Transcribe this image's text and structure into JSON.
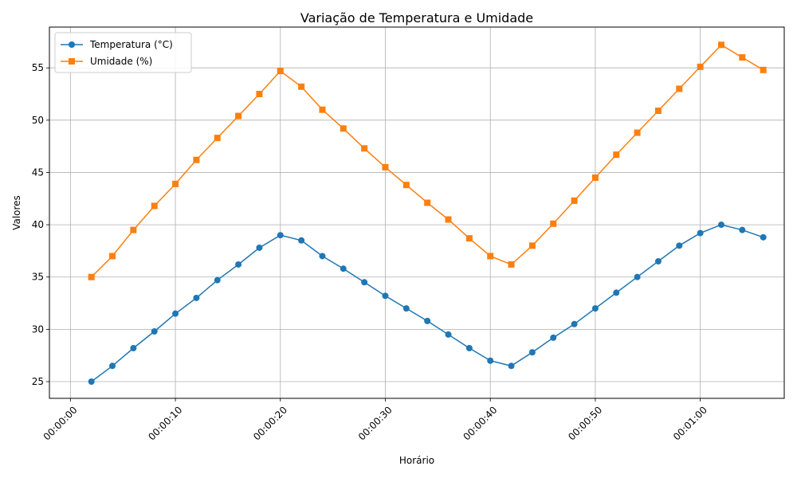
{
  "chart_data": {
    "type": "line",
    "title": "Variação de Temperatura e Umidade",
    "xlabel": "Horário",
    "ylabel": "Valores",
    "x_unit": "seconds",
    "xlim": [
      -2,
      68
    ],
    "ylim": [
      23.4,
      58.9
    ],
    "x_ticks": [
      0,
      10,
      20,
      30,
      40,
      50,
      60
    ],
    "x_tick_labels": [
      "00:00:00",
      "00:00:10",
      "00:00:20",
      "00:00:30",
      "00:00:40",
      "00:00:50",
      "00:01:00"
    ],
    "y_ticks": [
      25,
      30,
      35,
      40,
      45,
      50,
      55
    ],
    "y_tick_labels": [
      "25",
      "30",
      "35",
      "40",
      "45",
      "50",
      "55"
    ],
    "grid": true,
    "legend_position": "top-left",
    "x": [
      2,
      4,
      6,
      8,
      10,
      12,
      14,
      16,
      18,
      20,
      22,
      24,
      26,
      28,
      30,
      32,
      34,
      36,
      38,
      40,
      42,
      44,
      46,
      48,
      50,
      52,
      54,
      56,
      58,
      60,
      62,
      64,
      66
    ],
    "series": [
      {
        "name": "Temperatura (°C)",
        "color": "#1f77b4",
        "marker": "circle",
        "values": [
          25.0,
          26.5,
          28.2,
          29.8,
          31.5,
          33.0,
          34.7,
          36.2,
          37.8,
          39.0,
          38.5,
          37.0,
          35.8,
          34.5,
          33.2,
          32.0,
          30.8,
          29.5,
          28.2,
          27.0,
          26.5,
          27.8,
          29.2,
          30.5,
          32.0,
          33.5,
          35.0,
          36.5,
          38.0,
          39.2,
          40.0,
          39.5,
          38.8
        ]
      },
      {
        "name": "Umidade (%)",
        "color": "#ff7f0e",
        "marker": "square",
        "values": [
          35.0,
          37.0,
          39.5,
          41.8,
          43.9,
          46.2,
          48.3,
          50.4,
          52.5,
          54.7,
          53.2,
          51.0,
          49.2,
          47.3,
          45.5,
          43.8,
          42.1,
          40.5,
          38.7,
          37.0,
          36.2,
          38.0,
          40.1,
          42.3,
          44.5,
          46.7,
          48.8,
          50.9,
          53.0,
          55.1,
          57.2,
          56.0,
          54.8
        ]
      }
    ]
  }
}
